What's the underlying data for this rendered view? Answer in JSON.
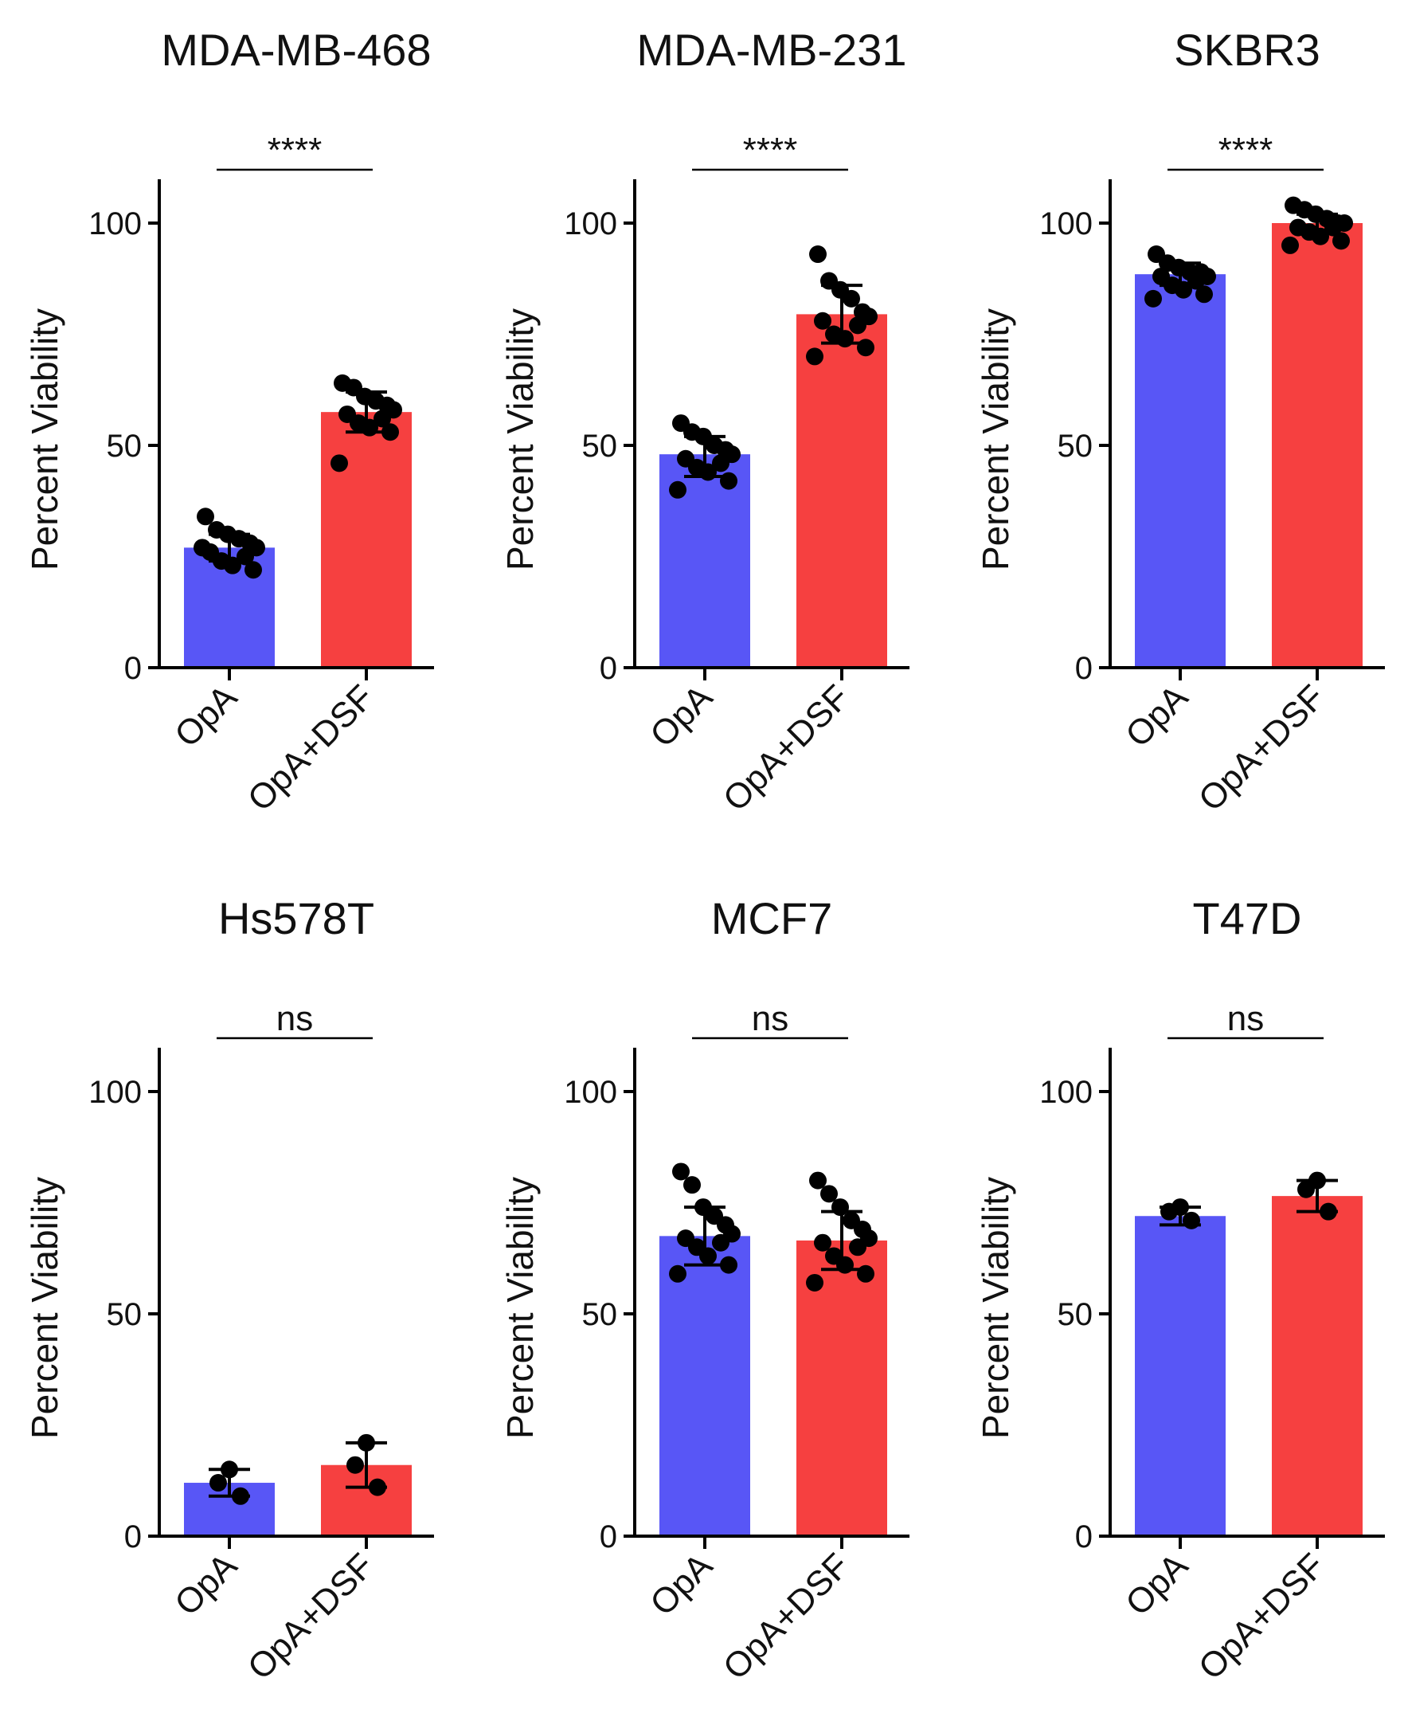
{
  "figure": {
    "y_axis_label": "Percent Viability",
    "categories": [
      "OpA",
      "OpA+DSF"
    ],
    "colors": {
      "OpA": "#5856f6",
      "OpA+DSF": "#f64040",
      "points": "#000000",
      "axes": "#000000"
    }
  },
  "chart_data": [
    {
      "type": "bar",
      "title": "MDA-MB-468",
      "significance": "****",
      "categories": [
        "OpA",
        "OpA+DSF"
      ],
      "ylabel": "Percent Viability",
      "ylim": [
        0,
        110
      ],
      "yticks": [
        0,
        50,
        100
      ],
      "values": [
        27,
        57.5
      ],
      "error": [
        [
          24,
          30
        ],
        [
          53,
          62
        ]
      ],
      "points": [
        [
          34,
          31,
          30,
          29,
          28,
          27,
          26,
          25,
          24,
          23,
          22,
          27
        ],
        [
          64,
          63,
          61,
          60,
          59,
          58,
          57,
          56,
          55,
          54,
          53,
          46
        ]
      ]
    },
    {
      "type": "bar",
      "title": "MDA-MB-231",
      "significance": "****",
      "categories": [
        "OpA",
        "OpA+DSF"
      ],
      "ylabel": "Percent Viability",
      "ylim": [
        0,
        110
      ],
      "yticks": [
        0,
        50,
        100
      ],
      "values": [
        48,
        79.5
      ],
      "error": [
        [
          43,
          52
        ],
        [
          73,
          86
        ]
      ],
      "points": [
        [
          55,
          53,
          52,
          50,
          49,
          48,
          47,
          46,
          45,
          44,
          42,
          40
        ],
        [
          93,
          87,
          85,
          83,
          80,
          79,
          78,
          77,
          75,
          74,
          72,
          70
        ]
      ]
    },
    {
      "type": "bar",
      "title": "SKBR3",
      "significance": "****",
      "categories": [
        "OpA",
        "OpA+DSF"
      ],
      "ylabel": "Percent Viability",
      "ylim": [
        0,
        110
      ],
      "yticks": [
        0,
        50,
        100
      ],
      "values": [
        88.5,
        100
      ],
      "error": [
        [
          86,
          91
        ],
        [
          98,
          102
        ]
      ],
      "points": [
        [
          93,
          91,
          90,
          89,
          89,
          88,
          88,
          87,
          86,
          85,
          84,
          83
        ],
        [
          104,
          103,
          102,
          101,
          100,
          100,
          99,
          99,
          98,
          97,
          96,
          95
        ]
      ]
    },
    {
      "type": "bar",
      "title": "Hs578T",
      "significance": "ns",
      "categories": [
        "OpA",
        "OpA+DSF"
      ],
      "ylabel": "Percent Viability",
      "ylim": [
        0,
        110
      ],
      "yticks": [
        0,
        50,
        100
      ],
      "values": [
        12,
        16
      ],
      "error": [
        [
          9,
          15
        ],
        [
          11,
          21
        ]
      ],
      "points": [
        [
          15,
          12,
          9
        ],
        [
          21,
          16,
          11
        ]
      ]
    },
    {
      "type": "bar",
      "title": "MCF7",
      "significance": "ns",
      "categories": [
        "OpA",
        "OpA+DSF"
      ],
      "ylabel": "Percent Viability",
      "ylim": [
        0,
        110
      ],
      "yticks": [
        0,
        50,
        100
      ],
      "values": [
        67.5,
        66.5
      ],
      "error": [
        [
          61,
          74
        ],
        [
          60,
          73
        ]
      ],
      "points": [
        [
          82,
          79,
          74,
          72,
          70,
          68,
          67,
          66,
          65,
          63,
          61,
          59
        ],
        [
          80,
          77,
          74,
          71,
          69,
          67,
          66,
          65,
          63,
          61,
          59,
          57
        ]
      ]
    },
    {
      "type": "bar",
      "title": "T47D",
      "significance": "ns",
      "categories": [
        "OpA",
        "OpA+DSF"
      ],
      "ylabel": "Percent Viability",
      "ylim": [
        0,
        110
      ],
      "yticks": [
        0,
        50,
        100
      ],
      "values": [
        72,
        76.5
      ],
      "error": [
        [
          70,
          74
        ],
        [
          73,
          80
        ]
      ],
      "points": [
        [
          74,
          73,
          71
        ],
        [
          80,
          78,
          73
        ]
      ]
    }
  ]
}
